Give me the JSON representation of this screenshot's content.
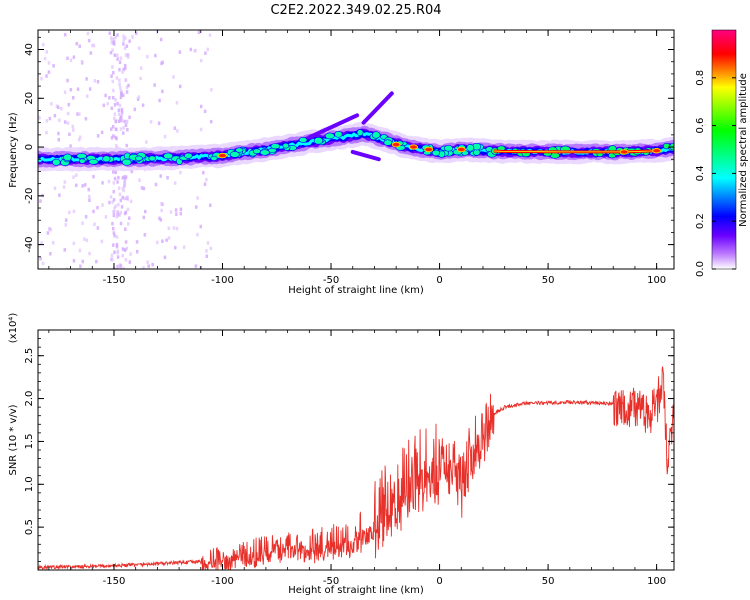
{
  "title": "C2E2.2022.349.02.25.R04",
  "chart_data": [
    {
      "type": "heatmap",
      "xlabel": "Height of straight line (km)",
      "ylabel": "Frequency (Hz)",
      "xlim": [
        -185,
        108
      ],
      "ylim": [
        -50,
        48
      ],
      "xticks": [
        -150,
        -100,
        -50,
        0,
        50,
        100
      ],
      "yticks": [
        -40,
        -20,
        0,
        20,
        40
      ],
      "colorbar": {
        "label": "Normalized spectral amplitude",
        "range": [
          0,
          1
        ],
        "ticks": [
          0.0,
          0.2,
          0.4,
          0.6,
          0.8
        ],
        "tick_labels": [
          "0.0",
          "0.2",
          "0.4",
          "0.6",
          "0.8"
        ],
        "colormap": [
          "#ffffff",
          "#6a00ff",
          "#0000ff",
          "#00ffff",
          "#00ff00",
          "#ffff00",
          "#ff0000",
          "#ff0080"
        ]
      },
      "ridge": {
        "description": "frequency of dominant spectral line vs height",
        "x": [
          -185,
          -150,
          -120,
          -100,
          -80,
          -60,
          -45,
          -35,
          -25,
          -15,
          0,
          10,
          30,
          60,
          85,
          100,
          108
        ],
        "y": [
          -5,
          -5,
          -4.5,
          -3.5,
          -1,
          2,
          4,
          5.5,
          3,
          0,
          -2,
          -1,
          -1.8,
          -2,
          -2,
          -1.5,
          -0.5
        ]
      }
    },
    {
      "type": "line",
      "xlabel": "Height of straight line (km)",
      "ylabel": "SNR (10 * v/v)",
      "yscale_label": "(x10⁴)",
      "xlim": [
        -185,
        108
      ],
      "ylim": [
        0,
        2.8
      ],
      "xticks": [
        -150,
        -100,
        -50,
        0,
        50,
        100
      ],
      "yticks": [
        0.5,
        1.0,
        1.5,
        2.0,
        2.5
      ],
      "ytick_labels": [
        "0.5",
        "1.0",
        "1.5",
        "2.0",
        "2.5"
      ],
      "series": [
        {
          "color": "#e8302a",
          "x": [
            -185,
            -160,
            -140,
            -125,
            -110,
            -100,
            -90,
            -80,
            -70,
            -60,
            -50,
            -40,
            -30,
            -25,
            -20,
            -15,
            -10,
            -5,
            0,
            5,
            10,
            15,
            20,
            25,
            30,
            40,
            50,
            60,
            70,
            80,
            85,
            90,
            95,
            100,
            103,
            105,
            108
          ],
          "y": [
            0.03,
            0.04,
            0.06,
            0.08,
            0.1,
            0.15,
            0.2,
            0.25,
            0.3,
            0.3,
            0.35,
            0.4,
            0.6,
            0.9,
            0.9,
            1.1,
            1.2,
            1.25,
            1.3,
            1.3,
            1.0,
            1.5,
            1.7,
            1.82,
            1.9,
            1.95,
            1.95,
            1.96,
            1.95,
            1.94,
            1.9,
            1.9,
            1.8,
            1.9,
            2.3,
            1.2,
            1.9
          ]
        }
      ]
    }
  ]
}
